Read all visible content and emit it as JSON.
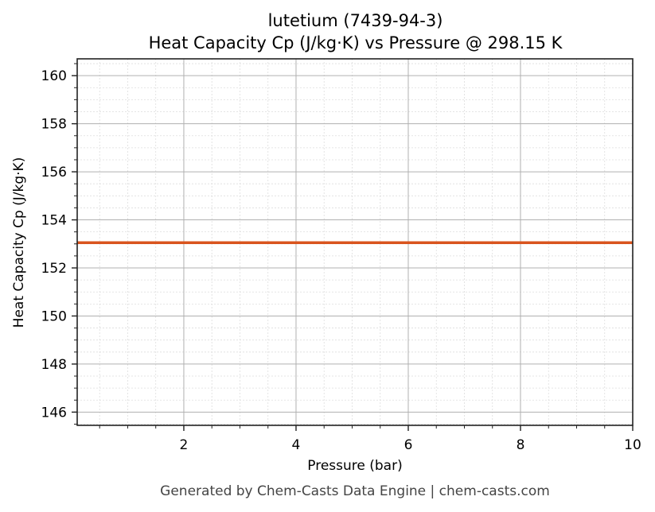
{
  "title_line1": "lutetium (7439-94-3)",
  "title_line2": "Heat Capacity Cp (J/kg·K) vs Pressure @ 298.15 K",
  "footer": "Generated by Chem-Casts Data Engine | chem-casts.com",
  "chart_data": {
    "type": "line",
    "title": "lutetium (7439-94-3) Heat Capacity Cp (J/kg·K) vs Pressure @ 298.15 K",
    "xlabel": "Pressure (bar)",
    "ylabel": "Heat Capacity Cp (J/kg·K)",
    "xlim": [
      0.1,
      10
    ],
    "ylim": [
      145.45,
      160.7
    ],
    "x_ticks": [
      "2",
      "4",
      "6",
      "8",
      "10"
    ],
    "y_ticks": [
      "146",
      "148",
      "150",
      "152",
      "154",
      "156",
      "158",
      "160"
    ],
    "grid": true,
    "minor_grid": true,
    "legend": null,
    "series": [
      {
        "name": "Cp",
        "color": "#d9541e",
        "x": [
          0.1,
          10
        ],
        "y": [
          153.05,
          153.05
        ]
      }
    ]
  }
}
